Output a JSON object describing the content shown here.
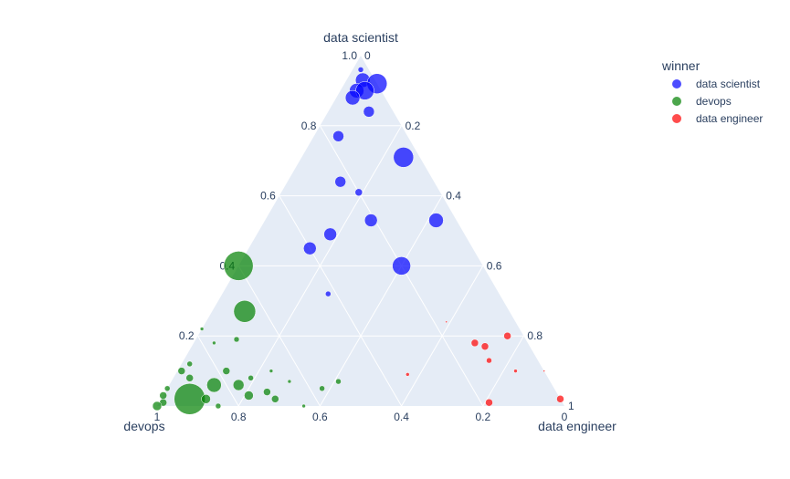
{
  "chart_data": {
    "type": "scatter",
    "subtype": "ternary",
    "axes": {
      "a": {
        "title": "data scientist",
        "ticks": [
          "0.2",
          "0.4",
          "0.6",
          "0.8",
          "1.0"
        ]
      },
      "b": {
        "title": "devops",
        "ticks": [
          "1",
          "0.8",
          "0.6",
          "0.4",
          "0.2",
          "0"
        ]
      },
      "c": {
        "title": "data engineer",
        "ticks": [
          "0",
          "0.2",
          "0.4",
          "0.6",
          "0.8",
          "1"
        ]
      }
    },
    "grid": true,
    "background_color": "#e5ecf6",
    "legend": {
      "title": "winner",
      "placement": "top-right",
      "items": [
        {
          "label": "data scientist",
          "color": "#0000ff"
        },
        {
          "label": "devops",
          "color": "#008000"
        },
        {
          "label": "data engineer",
          "color": "#ff0000"
        }
      ]
    },
    "series": [
      {
        "name": "data scientist",
        "color": "#0000ff",
        "points": [
          {
            "a": 0.96,
            "b": 0.02,
            "c": 0.02,
            "size": 3
          },
          {
            "a": 0.93,
            "b": 0.03,
            "c": 0.04,
            "size": 8
          },
          {
            "a": 0.92,
            "b": 0.0,
            "c": 0.08,
            "size": 11
          },
          {
            "a": 0.9,
            "b": 0.06,
            "c": 0.04,
            "size": 8
          },
          {
            "a": 0.9,
            "b": 0.04,
            "c": 0.06,
            "size": 10
          },
          {
            "a": 0.88,
            "b": 0.08,
            "c": 0.04,
            "size": 8
          },
          {
            "a": 0.84,
            "b": 0.06,
            "c": 0.1,
            "size": 6
          },
          {
            "a": 0.77,
            "b": 0.17,
            "c": 0.06,
            "size": 6
          },
          {
            "a": 0.71,
            "b": 0.04,
            "c": 0.25,
            "size": 11
          },
          {
            "a": 0.64,
            "b": 0.23,
            "c": 0.13,
            "size": 6
          },
          {
            "a": 0.61,
            "b": 0.2,
            "c": 0.19,
            "size": 4
          },
          {
            "a": 0.53,
            "b": 0.21,
            "c": 0.26,
            "size": 7
          },
          {
            "a": 0.53,
            "b": 0.05,
            "c": 0.42,
            "size": 8
          },
          {
            "a": 0.49,
            "b": 0.33,
            "c": 0.18,
            "size": 7
          },
          {
            "a": 0.45,
            "b": 0.4,
            "c": 0.15,
            "size": 7
          },
          {
            "a": 0.4,
            "b": 0.2,
            "c": 0.4,
            "size": 10
          },
          {
            "a": 0.32,
            "b": 0.42,
            "c": 0.26,
            "size": 3
          }
        ]
      },
      {
        "name": "devops",
        "color": "#008000",
        "points": [
          {
            "a": 0.4,
            "b": 0.6,
            "c": 0.0,
            "size": 16
          },
          {
            "a": 0.27,
            "b": 0.65,
            "c": 0.08,
            "size": 12
          },
          {
            "a": 0.22,
            "b": 0.78,
            "c": 0.0,
            "size": 2
          },
          {
            "a": 0.19,
            "b": 0.71,
            "c": 0.1,
            "size": 3
          },
          {
            "a": 0.18,
            "b": 0.77,
            "c": 0.05,
            "size": 2
          },
          {
            "a": 0.12,
            "b": 0.86,
            "c": 0.02,
            "size": 3
          },
          {
            "a": 0.1,
            "b": 0.89,
            "c": 0.01,
            "size": 4
          },
          {
            "a": 0.1,
            "b": 0.78,
            "c": 0.12,
            "size": 4
          },
          {
            "a": 0.1,
            "b": 0.67,
            "c": 0.23,
            "size": 2
          },
          {
            "a": 0.08,
            "b": 0.88,
            "c": 0.04,
            "size": 4
          },
          {
            "a": 0.08,
            "b": 0.73,
            "c": 0.19,
            "size": 3
          },
          {
            "a": 0.07,
            "b": 0.64,
            "c": 0.29,
            "size": 2
          },
          {
            "a": 0.07,
            "b": 0.52,
            "c": 0.41,
            "size": 3
          },
          {
            "a": 0.06,
            "b": 0.83,
            "c": 0.11,
            "size": 8
          },
          {
            "a": 0.06,
            "b": 0.77,
            "c": 0.17,
            "size": 6
          },
          {
            "a": 0.05,
            "b": 0.95,
            "c": 0.0,
            "size": 3
          },
          {
            "a": 0.05,
            "b": 0.57,
            "c": 0.38,
            "size": 3
          },
          {
            "a": 0.04,
            "b": 0.71,
            "c": 0.25,
            "size": 4
          },
          {
            "a": 0.03,
            "b": 0.97,
            "c": 0.0,
            "size": 4
          },
          {
            "a": 0.03,
            "b": 0.76,
            "c": 0.21,
            "size": 5
          },
          {
            "a": 0.02,
            "b": 0.91,
            "c": 0.07,
            "size": 17
          },
          {
            "a": 0.02,
            "b": 0.87,
            "c": 0.11,
            "size": 5
          },
          {
            "a": 0.02,
            "b": 0.7,
            "c": 0.28,
            "size": 4
          },
          {
            "a": 0.01,
            "b": 0.98,
            "c": 0.01,
            "size": 4
          },
          {
            "a": 0.0,
            "b": 1.0,
            "c": 0.0,
            "size": 5
          },
          {
            "a": 0.0,
            "b": 0.85,
            "c": 0.15,
            "size": 3
          },
          {
            "a": 0.0,
            "b": 0.64,
            "c": 0.36,
            "size": 2
          }
        ]
      },
      {
        "name": "data engineer",
        "color": "#ff0000",
        "points": [
          {
            "a": 0.24,
            "b": 0.17,
            "c": 0.59,
            "size": 1
          },
          {
            "a": 0.2,
            "b": 0.04,
            "c": 0.76,
            "size": 4
          },
          {
            "a": 0.18,
            "b": 0.13,
            "c": 0.69,
            "size": 4
          },
          {
            "a": 0.17,
            "b": 0.11,
            "c": 0.72,
            "size": 4
          },
          {
            "a": 0.13,
            "b": 0.12,
            "c": 0.75,
            "size": 3
          },
          {
            "a": 0.1,
            "b": 0.07,
            "c": 0.83,
            "size": 2
          },
          {
            "a": 0.09,
            "b": 0.34,
            "c": 0.57,
            "size": 2
          },
          {
            "a": 0.1,
            "b": 0.0,
            "c": 0.9,
            "size": 1
          },
          {
            "a": 0.02,
            "b": 0.0,
            "c": 0.98,
            "size": 4
          },
          {
            "a": 0.01,
            "b": 0.18,
            "c": 0.81,
            "size": 4
          }
        ]
      }
    ]
  }
}
